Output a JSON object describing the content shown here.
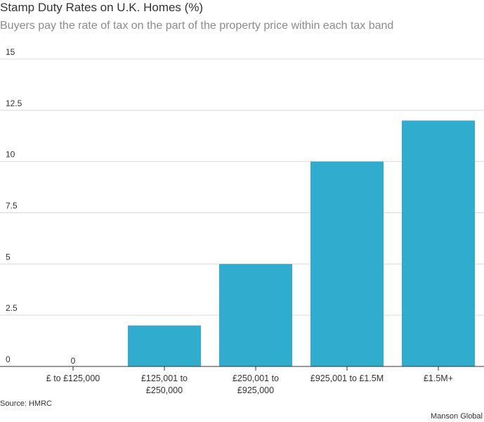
{
  "header": {
    "title": "Stamp Duty Rates on U.K. Homes (%)",
    "subtitle": "Buyers pay the rate of tax on the part of the property price within each tax band"
  },
  "footer": {
    "source": "Source: HMRC",
    "credit": "Manson Global"
  },
  "colors": {
    "bar": "#30acce",
    "grid": "#d9d9d9",
    "axis": "#333333"
  },
  "chart_data": {
    "type": "bar",
    "title": "Stamp Duty Rates on U.K. Homes (%)",
    "subtitle": "Buyers pay the rate of tax on the part of the property price within each tax band",
    "categories": [
      [
        "£ to £125,000"
      ],
      [
        "£125,001 to",
        "£250,000"
      ],
      [
        "£250,001 to",
        "£925,000"
      ],
      [
        "£925,001 to £1.5M"
      ],
      [
        "£1.5M+"
      ]
    ],
    "values": [
      0,
      2,
      5,
      10,
      12
    ],
    "data_labels": [
      "0",
      "",
      "",
      "",
      ""
    ],
    "ylim": [
      0,
      15
    ],
    "yticks": [
      "0",
      "2.5",
      "5",
      "7.5",
      "10",
      "12.5",
      "15"
    ],
    "ytick_values": [
      0,
      2.5,
      5,
      7.5,
      10,
      12.5,
      15
    ],
    "grid": true,
    "legend": "none"
  }
}
